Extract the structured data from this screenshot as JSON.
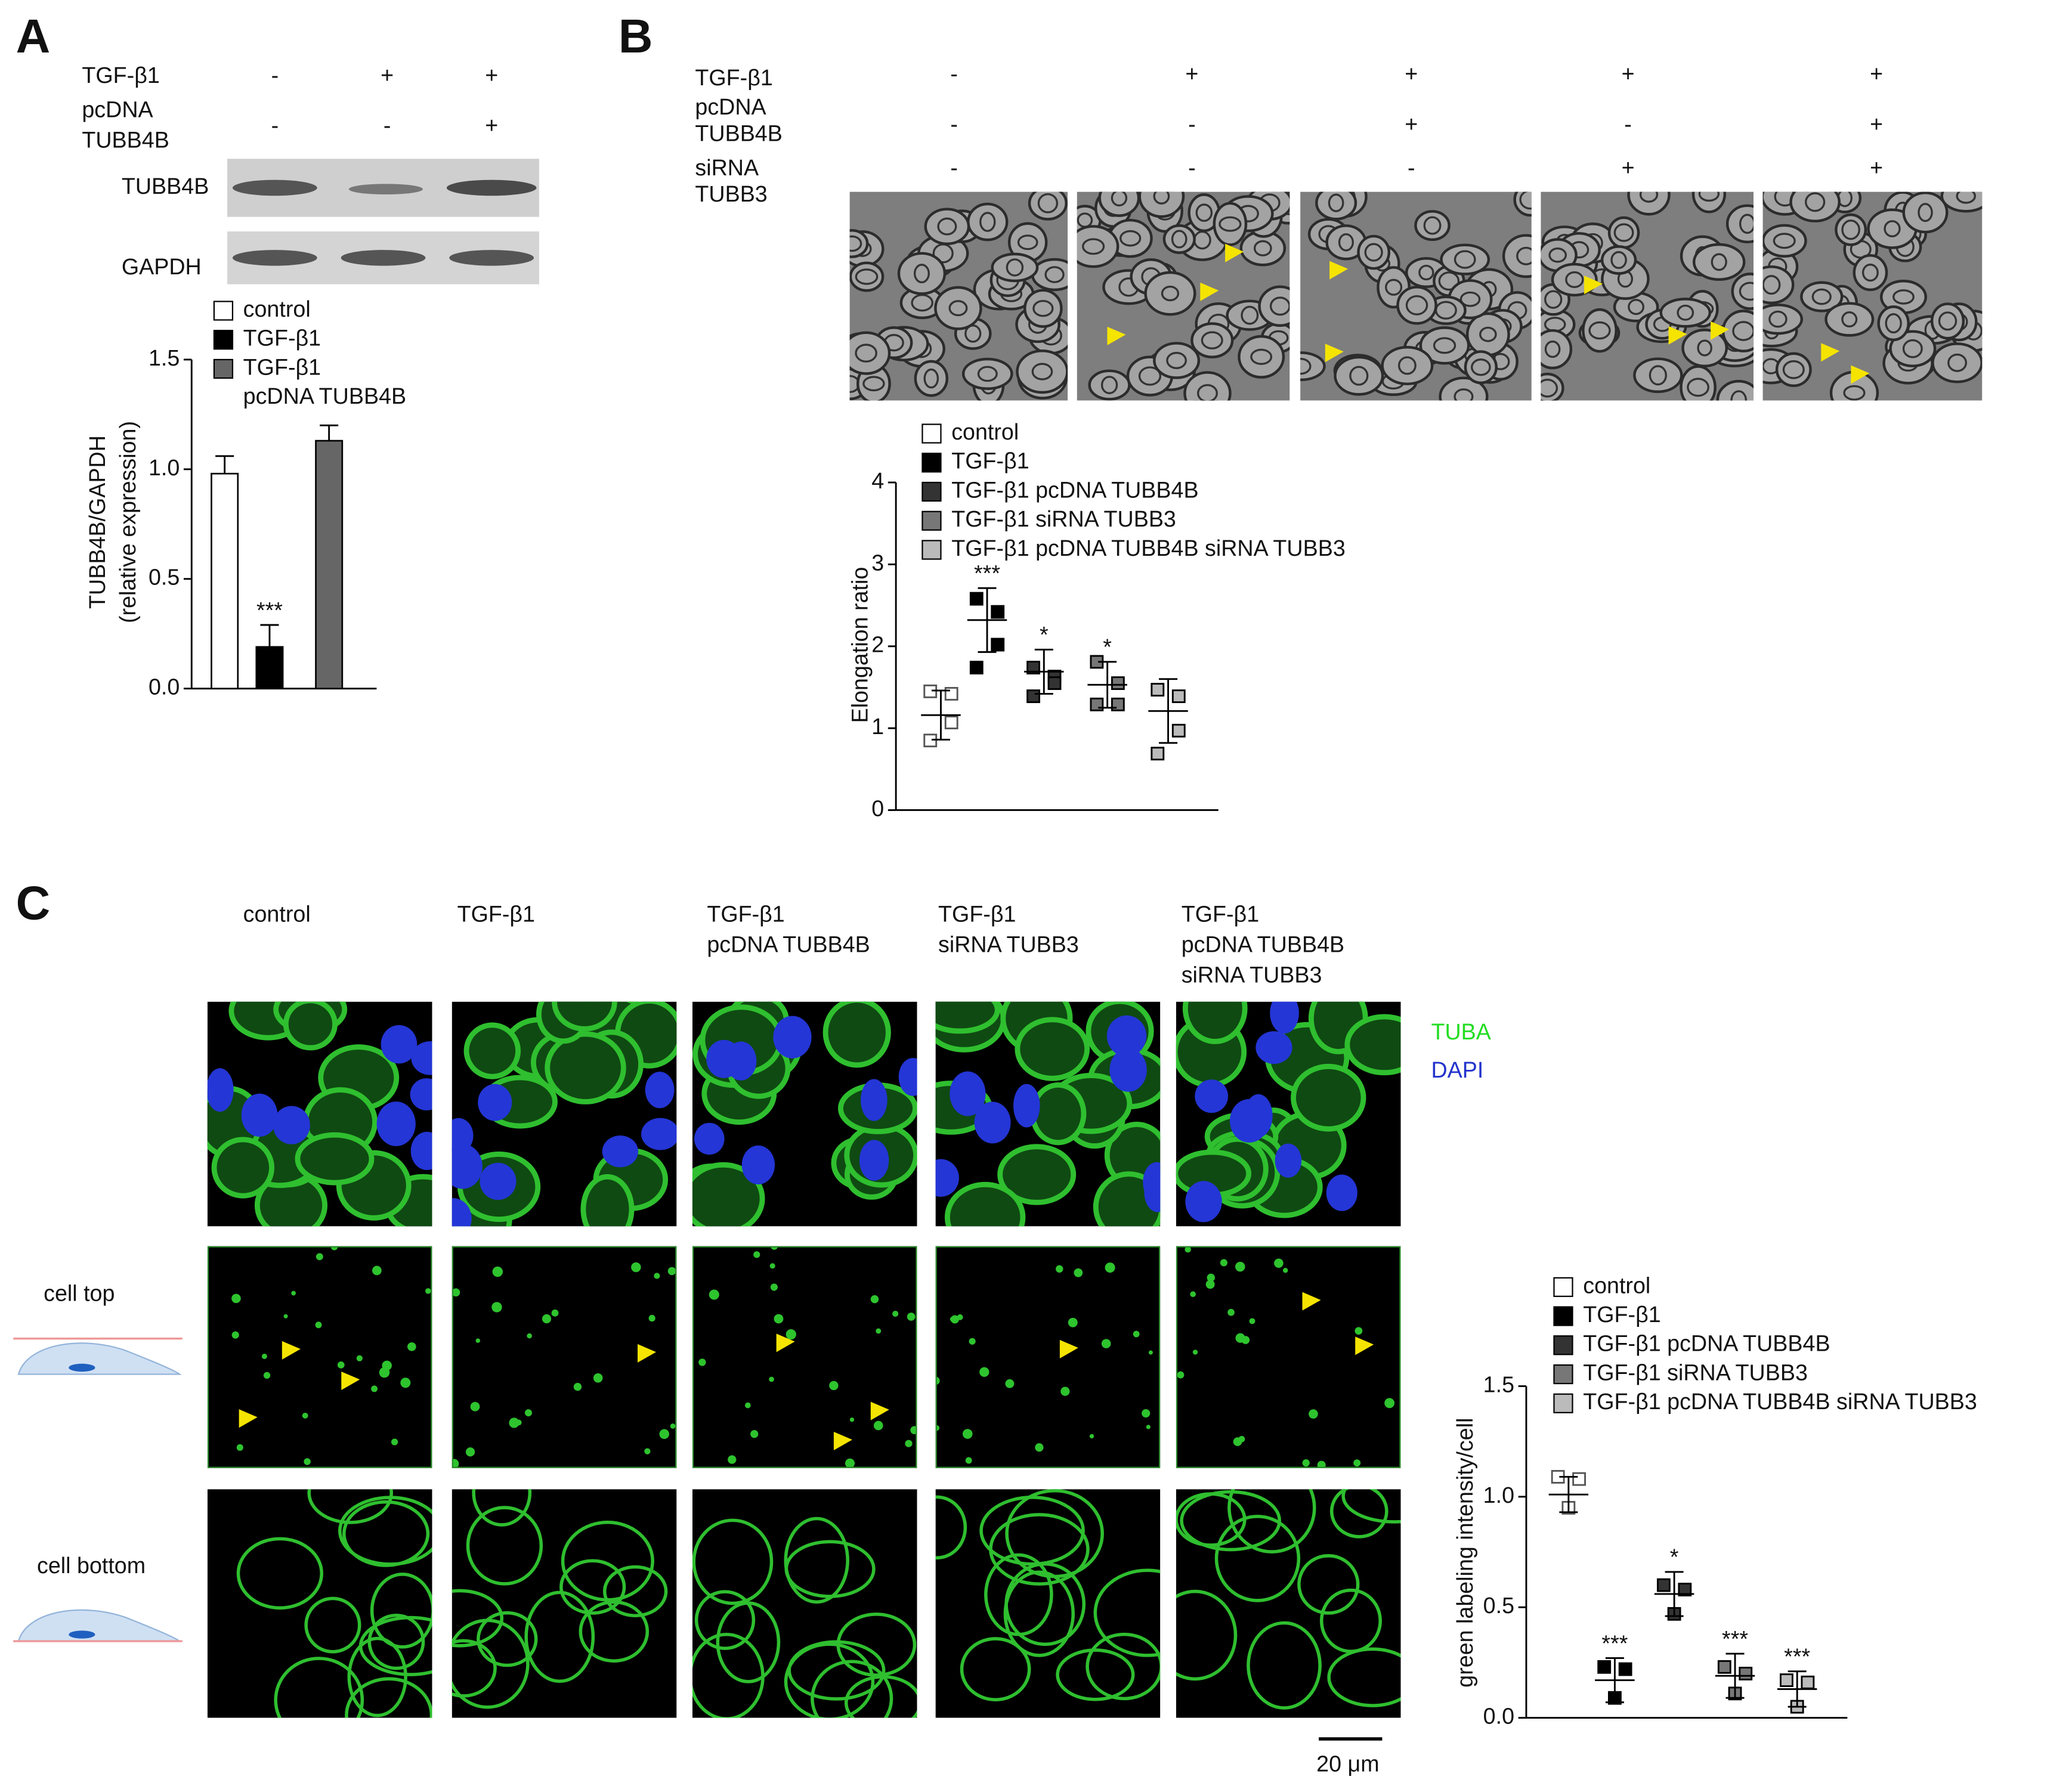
{
  "panel_labels": [
    "A",
    "B",
    "C"
  ],
  "panel_a": {
    "treatments": [
      {
        "label_lines": [
          "TGF-β1"
        ],
        "values": [
          "-",
          "+",
          "+"
        ]
      },
      {
        "label_lines": [
          "pcDNA",
          "TUBB4B"
        ],
        "values": [
          "-",
          "-",
          "+"
        ]
      }
    ],
    "blot_labels": [
      "TUBB4B",
      "GAPDH"
    ]
  },
  "panel_b": {
    "treatments": [
      {
        "label_lines": [
          "TGF-β1"
        ],
        "values": [
          "-",
          "+",
          "+",
          "+",
          "+"
        ]
      },
      {
        "label_lines": [
          "pcDNA",
          "TUBB4B"
        ],
        "values": [
          "-",
          "-",
          "+",
          "-",
          "+"
        ]
      },
      {
        "label_lines": [
          "siRNA",
          "TUBB3"
        ],
        "values": [
          "-",
          "-",
          "-",
          "+",
          "+"
        ]
      }
    ]
  },
  "panel_c": {
    "column_labels": [
      [
        "control"
      ],
      [
        "TGF-β1"
      ],
      [
        "TGF-β1",
        "pcDNA TUBB4B"
      ],
      [
        "TGF-β1",
        "siRNA TUBB3"
      ],
      [
        "TGF-β1",
        "pcDNA TUBB4B",
        "siRNA TUBB3"
      ]
    ],
    "row_labels": [
      "cell top",
      "cell bottom"
    ],
    "channels": [
      {
        "name": "TUBA",
        "color": "#22dd22"
      },
      {
        "name": "DAPI",
        "color": "#2233cc"
      }
    ],
    "scale_bar": "20 μm"
  },
  "chart_data": [
    {
      "type": "bar",
      "y_label_lines": [
        "TUBB4B/GAPDH",
        "(relative expression)"
      ],
      "ylim": [
        0,
        1.5
      ],
      "yticks": [
        {
          "value": 0,
          "label": "0.0"
        },
        0.5,
        {
          "value": 1,
          "label": "1.0"
        },
        1.5
      ],
      "series": [
        {
          "name_lines": [
            "control"
          ],
          "color": "#ffffff",
          "values": [
            0.98
          ],
          "errors": [
            0.08
          ]
        },
        {
          "name_lines": [
            "TGF-β1"
          ],
          "color": "#000000",
          "values": [
            0.19
          ],
          "errors": [
            0.1
          ]
        },
        {
          "name_lines": [
            "TGF-β1",
            "pcDNA TUBB4B"
          ],
          "color": "#666666",
          "values": [
            1.13
          ],
          "errors": [
            0.07
          ]
        }
      ],
      "significance": [
        null,
        "***",
        null
      ]
    },
    {
      "type": "dot",
      "y_label_lines": [
        "Elongation ratio"
      ],
      "ylim": [
        0,
        4
      ],
      "yticks": [
        0,
        1,
        2,
        3,
        4
      ],
      "series": [
        {
          "name_lines": [
            "control"
          ],
          "color": "#ffffff",
          "values": [
            1.45,
            1.42,
            1.07,
            0.85
          ],
          "mean": 1.16,
          "sd": 0.3
        },
        {
          "name_lines": [
            "TGF-β1"
          ],
          "color": "#000000",
          "values": [
            2.58,
            2.42,
            2.02,
            1.74
          ],
          "mean": 2.32,
          "sd": 0.39
        },
        {
          "name_lines": [
            "TGF-β1 pcDNA TUBB4B"
          ],
          "color": "#333333",
          "values": [
            1.74,
            1.63,
            1.55,
            1.39
          ],
          "mean": 1.69,
          "sd": 0.27
        },
        {
          "name_lines": [
            "TGF-β1 siRNA TUBB3"
          ],
          "color": "#777777",
          "values": [
            1.81,
            1.55,
            1.29,
            1.29
          ],
          "mean": 1.53,
          "sd": 0.28
        },
        {
          "name_lines": [
            "TGF-β1 pcDNA TUBB4B siRNA TUBB3"
          ],
          "color": "#bbbbbb",
          "values": [
            1.47,
            1.39,
            0.97,
            0.69
          ],
          "mean": 1.21,
          "sd": 0.39
        }
      ],
      "significance": [
        null,
        "***",
        "*",
        "*",
        null
      ]
    },
    {
      "type": "dot",
      "y_label_lines": [
        "green labeling intensity/cell"
      ],
      "ylim": [
        0,
        1.5
      ],
      "yticks": [
        {
          "value": 0,
          "label": "0.0"
        },
        0.5,
        {
          "value": 1,
          "label": "1.0"
        },
        1.5
      ],
      "series": [
        {
          "name_lines": [
            "control"
          ],
          "color": "#ffffff",
          "values": [
            1.09,
            1.08,
            0.95
          ],
          "mean": 1.01,
          "sd": 0.08
        },
        {
          "name_lines": [
            "TGF-β1"
          ],
          "color": "#000000",
          "values": [
            0.23,
            0.22,
            0.09
          ],
          "mean": 0.17,
          "sd": 0.1
        },
        {
          "name_lines": [
            "TGF-β1 pcDNA TUBB4B"
          ],
          "color": "#333333",
          "values": [
            0.6,
            0.58,
            0.47
          ],
          "mean": 0.56,
          "sd": 0.1
        },
        {
          "name_lines": [
            "TGF-β1 siRNA TUBB3"
          ],
          "color": "#777777",
          "values": [
            0.23,
            0.2,
            0.11
          ],
          "mean": 0.19,
          "sd": 0.1
        },
        {
          "name_lines": [
            "TGF-β1 pcDNA TUBB4B siRNA TUBB3"
          ],
          "color": "#bbbbbb",
          "values": [
            0.17,
            0.16,
            0.05
          ],
          "mean": 0.13,
          "sd": 0.08
        }
      ],
      "significance": [
        null,
        "***",
        "*",
        "***",
        "***"
      ]
    }
  ]
}
